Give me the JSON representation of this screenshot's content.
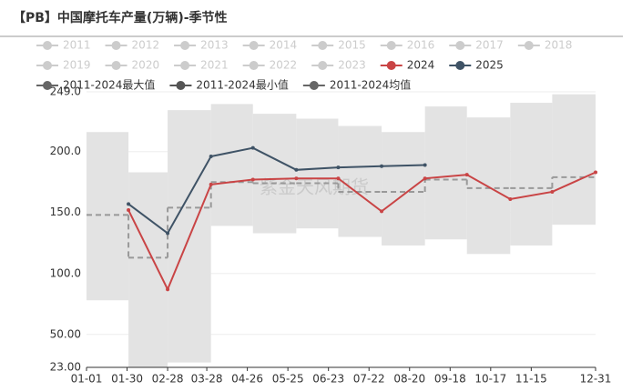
{
  "chart_data": {
    "type": "line",
    "title": "【PB】中国摩托车产量(万辆)-季节性",
    "watermark": "紫金天风期货",
    "x": [
      "01-31",
      "02-28",
      "03-31",
      "04-30",
      "05-31",
      "06-30",
      "07-31",
      "08-31",
      "09-30",
      "10-31",
      "11-30",
      "12-31"
    ],
    "xlim": [
      "01-01",
      "12-31"
    ],
    "xticks": [
      "01-01",
      "01-30",
      "02-28",
      "03-28",
      "04-26",
      "05-25",
      "06-23",
      "07-22",
      "08-20",
      "09-18",
      "10-17",
      "11-15",
      "12-31"
    ],
    "ylim": [
      23,
      249
    ],
    "yticks": [
      {
        "value": 23,
        "label": "23.00"
      },
      {
        "value": 50,
        "label": "50.00"
      },
      {
        "value": 100,
        "label": "100.0"
      },
      {
        "value": 150,
        "label": "150.0"
      },
      {
        "value": 200,
        "label": "200.0"
      },
      {
        "value": 249,
        "label": "249.0"
      }
    ],
    "grid": true,
    "series": [
      {
        "name": "2011",
        "color": "#cccccc",
        "visible": false
      },
      {
        "name": "2012",
        "color": "#cccccc",
        "visible": false
      },
      {
        "name": "2013",
        "color": "#cccccc",
        "visible": false
      },
      {
        "name": "2014",
        "color": "#cccccc",
        "visible": false
      },
      {
        "name": "2015",
        "color": "#cccccc",
        "visible": false
      },
      {
        "name": "2016",
        "color": "#cccccc",
        "visible": false
      },
      {
        "name": "2017",
        "color": "#cccccc",
        "visible": false
      },
      {
        "name": "2018",
        "color": "#cccccc",
        "visible": false
      },
      {
        "name": "2019",
        "color": "#cccccc",
        "visible": false
      },
      {
        "name": "2020",
        "color": "#cccccc",
        "visible": false
      },
      {
        "name": "2021",
        "color": "#cccccc",
        "visible": false
      },
      {
        "name": "2022",
        "color": "#cccccc",
        "visible": false
      },
      {
        "name": "2023",
        "color": "#cccccc",
        "visible": false
      },
      {
        "name": "2024",
        "color": "#c94445",
        "style": "line",
        "values": [
          152,
          87,
          173,
          177,
          178,
          178,
          151,
          178,
          181,
          161,
          167,
          183
        ]
      },
      {
        "name": "2025",
        "color": "#3f5366",
        "style": "line",
        "values": [
          157,
          133,
          196,
          203,
          185,
          187,
          188,
          189,
          null,
          null,
          null,
          null
        ]
      },
      {
        "name": "2011-2024最大值",
        "color": "#666666",
        "style": "band-max",
        "values": [
          216,
          183,
          234,
          239,
          231,
          227,
          221,
          216,
          237,
          228,
          240,
          247
        ]
      },
      {
        "name": "2011-2024最小值",
        "color": "#555555",
        "style": "band-min",
        "values": [
          78,
          23,
          27,
          139,
          133,
          137,
          130,
          123,
          128,
          116,
          123,
          140
        ]
      },
      {
        "name": "2011-2024均值",
        "color": "#666666",
        "style": "step-dashed",
        "values": [
          148,
          113,
          154,
          175,
          174,
          174,
          167,
          167,
          177,
          170,
          170,
          179
        ]
      }
    ]
  }
}
